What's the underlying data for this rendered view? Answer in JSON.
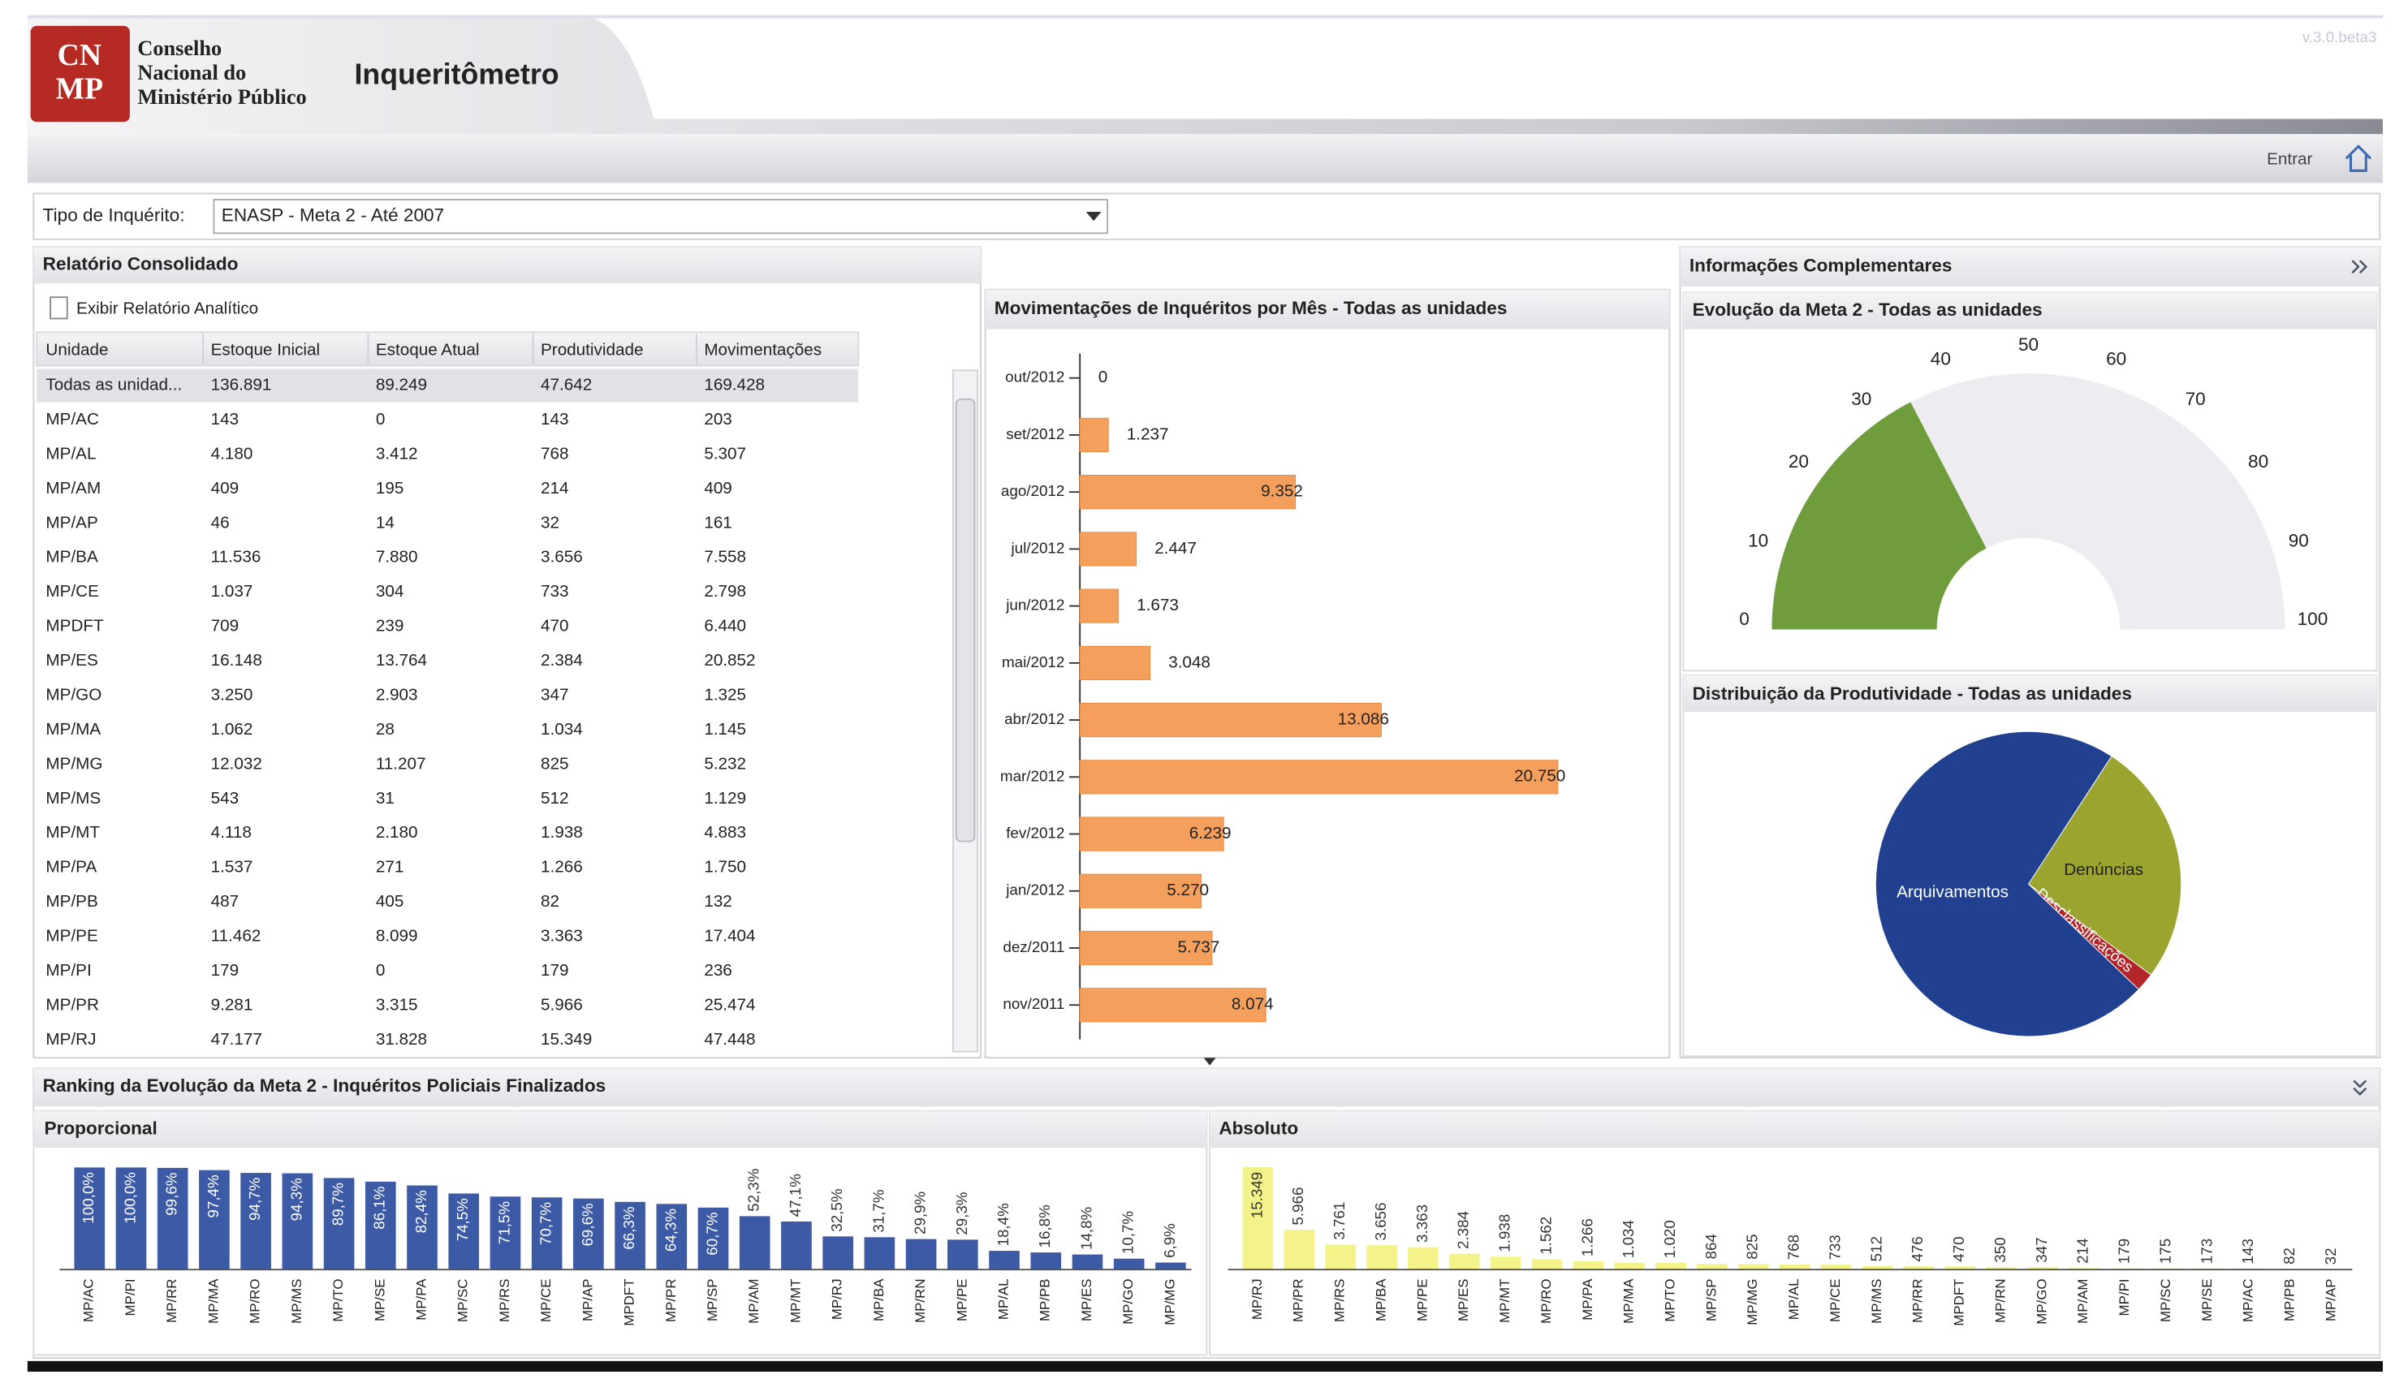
{
  "header": {
    "logo_top": "CN",
    "logo_bottom": "MP",
    "org": [
      "Conselho",
      "Nacional do",
      "Ministério Público"
    ],
    "app": "Inqueritômetro",
    "version": "v.3.0.beta3",
    "login": "Entrar"
  },
  "filter": {
    "label": "Tipo de Inquérito:",
    "value": "ENASP - Meta 2 - Até 2007"
  },
  "report": {
    "title": "Relatório Consolidado",
    "action": "Exibir Relatório Analítico",
    "table": {
      "columns": [
        "Unidade",
        "Estoque Inicial",
        "Estoque Atual",
        "Produtividade",
        "Movimentações"
      ],
      "rows": [
        [
          "Todas as unidad...",
          "136.891",
          "89.249",
          "47.642",
          "169.428"
        ],
        [
          "MP/AC",
          "143",
          "0",
          "143",
          "203"
        ],
        [
          "MP/AL",
          "4.180",
          "3.412",
          "768",
          "5.307"
        ],
        [
          "MP/AM",
          "409",
          "195",
          "214",
          "409"
        ],
        [
          "MP/AP",
          "46",
          "14",
          "32",
          "161"
        ],
        [
          "MP/BA",
          "11.536",
          "7.880",
          "3.656",
          "7.558"
        ],
        [
          "MP/CE",
          "1.037",
          "304",
          "733",
          "2.798"
        ],
        [
          "MPDFT",
          "709",
          "239",
          "470",
          "6.440"
        ],
        [
          "MP/ES",
          "16.148",
          "13.764",
          "2.384",
          "20.852"
        ],
        [
          "MP/GO",
          "3.250",
          "2.903",
          "347",
          "1.325"
        ],
        [
          "MP/MA",
          "1.062",
          "28",
          "1.034",
          "1.145"
        ],
        [
          "MP/MG",
          "12.032",
          "11.207",
          "825",
          "5.232"
        ],
        [
          "MP/MS",
          "543",
          "31",
          "512",
          "1.129"
        ],
        [
          "MP/MT",
          "4.118",
          "2.180",
          "1.938",
          "4.883"
        ],
        [
          "MP/PA",
          "1.537",
          "271",
          "1.266",
          "1.750"
        ],
        [
          "MP/PB",
          "487",
          "405",
          "82",
          "132"
        ],
        [
          "MP/PE",
          "11.462",
          "8.099",
          "3.363",
          "17.404"
        ],
        [
          "MP/PI",
          "179",
          "0",
          "179",
          "236"
        ],
        [
          "MP/PR",
          "9.281",
          "3.315",
          "5.966",
          "25.474"
        ],
        [
          "MP/RJ",
          "47.177",
          "31.828",
          "15.349",
          "47.448"
        ]
      ]
    }
  },
  "monthly_chart": {
    "type": "bar",
    "horizontal": true,
    "title": "Movimentações de Inquéritos por Mês - Todas as unidades",
    "categories": [
      "out/2012",
      "set/2012",
      "ago/2012",
      "jul/2012",
      "jun/2012",
      "mai/2012",
      "abr/2012",
      "mar/2012",
      "fev/2012",
      "jan/2012",
      "dez/2011",
      "nov/2011"
    ],
    "values": [
      0,
      1237,
      9352,
      2447,
      1673,
      3048,
      13086,
      20750,
      6239,
      5270,
      5737,
      8074
    ],
    "value_labels": [
      "0",
      "1.237",
      "9.352",
      "2.447",
      "1.673",
      "3.048",
      "13.086",
      "20.750",
      "6.239",
      "5.270",
      "5.737",
      "8.074"
    ],
    "color": "#f4a05c",
    "xlim": [
      0,
      25000
    ]
  },
  "side": {
    "title": "Informações Complementares"
  },
  "gauge_chart": {
    "type": "gauge",
    "title": "Evolução da Meta 2 - Todas as unidades",
    "value": 34.8,
    "ylim": [
      0,
      100
    ],
    "yticks": [
      0,
      10,
      20,
      30,
      40,
      50,
      60,
      70,
      80,
      90,
      100
    ],
    "color": "#6f9d3b",
    "track_color": "#ededf1"
  },
  "pie_chart": {
    "type": "pie",
    "title": "Distribuição da Produtividade - Todas as unidades",
    "categories": [
      "Denúncias",
      "Desclassificações",
      "Arquivamentos"
    ],
    "values": [
      26,
      2,
      72
    ],
    "colors": [
      "#9aa42f",
      "#b3262a",
      "#21408f"
    ]
  },
  "ranking": {
    "title": "Ranking da Evolução da Meta 2 - Inquéritos Policiais Finalizados",
    "charts": [
      {
        "type": "bar",
        "title": "Proporcional",
        "color": "#3d5aa6",
        "ylim": [
          0,
          100
        ],
        "categories": [
          "MP/AC",
          "MP/PI",
          "MP/RR",
          "MP/MA",
          "MP/RO",
          "MP/MS",
          "MP/TO",
          "MP/SE",
          "MP/PA",
          "MP/SC",
          "MP/RS",
          "MP/CE",
          "MP/AP",
          "MPDFT",
          "MP/PR",
          "MP/SP",
          "MP/AM",
          "MP/MT",
          "MP/RJ",
          "MP/BA",
          "MP/RN",
          "MP/PE",
          "MP/AL",
          "MP/PB",
          "MP/ES",
          "MP/GO",
          "MP/MG"
        ],
        "values": [
          100,
          100,
          99.6,
          97.4,
          94.7,
          94.3,
          89.7,
          86.1,
          82.4,
          74.5,
          71.5,
          70.7,
          69.6,
          66.3,
          64.3,
          60.7,
          52.3,
          47.1,
          32.5,
          31.7,
          29.9,
          29.3,
          18.4,
          16.8,
          14.8,
          10.7,
          6.9
        ],
        "value_labels": [
          "100,0%",
          "100,0%",
          "99,6%",
          "97,4%",
          "94,7%",
          "94,3%",
          "89,7%",
          "86,1%",
          "82,4%",
          "74,5%",
          "71,5%",
          "70,7%",
          "69,6%",
          "66,3%",
          "64,3%",
          "60,7%",
          "52,3%",
          "47,1%",
          "32,5%",
          "31,7%",
          "29,9%",
          "29,3%",
          "18,4%",
          "16,8%",
          "14,8%",
          "10,7%",
          "6,9%"
        ]
      },
      {
        "type": "bar",
        "title": "Absoluto",
        "color": "#f3f38a",
        "ylim": [
          0,
          16000
        ],
        "categories": [
          "MP/RJ",
          "MP/PR",
          "MP/RS",
          "MP/BA",
          "MP/PE",
          "MP/ES",
          "MP/MT",
          "MP/RO",
          "MP/PA",
          "MP/MA",
          "MP/TO",
          "MP/SP",
          "MP/MG",
          "MP/AL",
          "MP/CE",
          "MP/MS",
          "MP/RR",
          "MPDFT",
          "MP/RN",
          "MP/GO",
          "MP/AM",
          "MP/PI",
          "MP/SC",
          "MP/SE",
          "MP/AC",
          "MP/PB",
          "MP/AP"
        ],
        "values": [
          15349,
          5966,
          3761,
          3656,
          3363,
          2384,
          1938,
          1562,
          1266,
          1034,
          1020,
          864,
          825,
          768,
          733,
          512,
          476,
          470,
          350,
          347,
          214,
          179,
          175,
          173,
          143,
          82,
          32
        ],
        "value_labels": [
          "15.349",
          "5.966",
          "3.761",
          "3.656",
          "3.363",
          "2.384",
          "1.938",
          "1.562",
          "1.266",
          "1.034",
          "1.020",
          "864",
          "825",
          "768",
          "733",
          "512",
          "476",
          "470",
          "350",
          "347",
          "214",
          "179",
          "175",
          "173",
          "143",
          "82",
          "32"
        ]
      }
    ]
  }
}
